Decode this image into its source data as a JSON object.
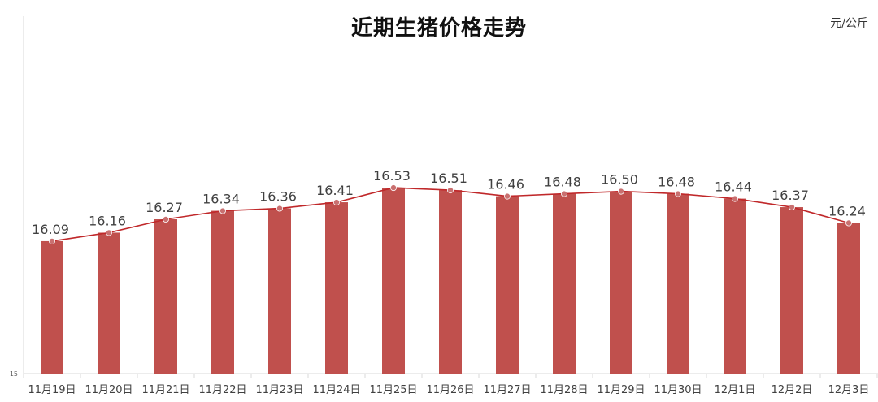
{
  "chart_data": {
    "type": "bar",
    "title": "近期生猪价格走势",
    "unit": "元/公斤",
    "categories": [
      "11月19日",
      "11月20日",
      "11月21日",
      "11月22日",
      "11月23日",
      "11月24日",
      "11月25日",
      "11月26日",
      "11月27日",
      "11月28日",
      "11月29日",
      "11月30日",
      "12月1日",
      "12月2日",
      "12月3日"
    ],
    "series": [
      {
        "values": [
          16.09,
          16.16,
          16.27,
          16.34,
          16.36,
          16.41,
          16.53,
          16.51,
          16.46,
          16.48,
          16.5,
          16.48,
          16.44,
          16.37,
          16.24
        ]
      }
    ],
    "overlay": "line",
    "y_tick_labels": [
      "15"
    ],
    "ylim": [
      15,
      16.6
    ],
    "grid": false,
    "legend": "none",
    "colors": {
      "bar": "#c0504d",
      "line": "#c0282a",
      "marker": "#c97070",
      "label": "#404040",
      "axis": "#d9d9d9"
    }
  }
}
